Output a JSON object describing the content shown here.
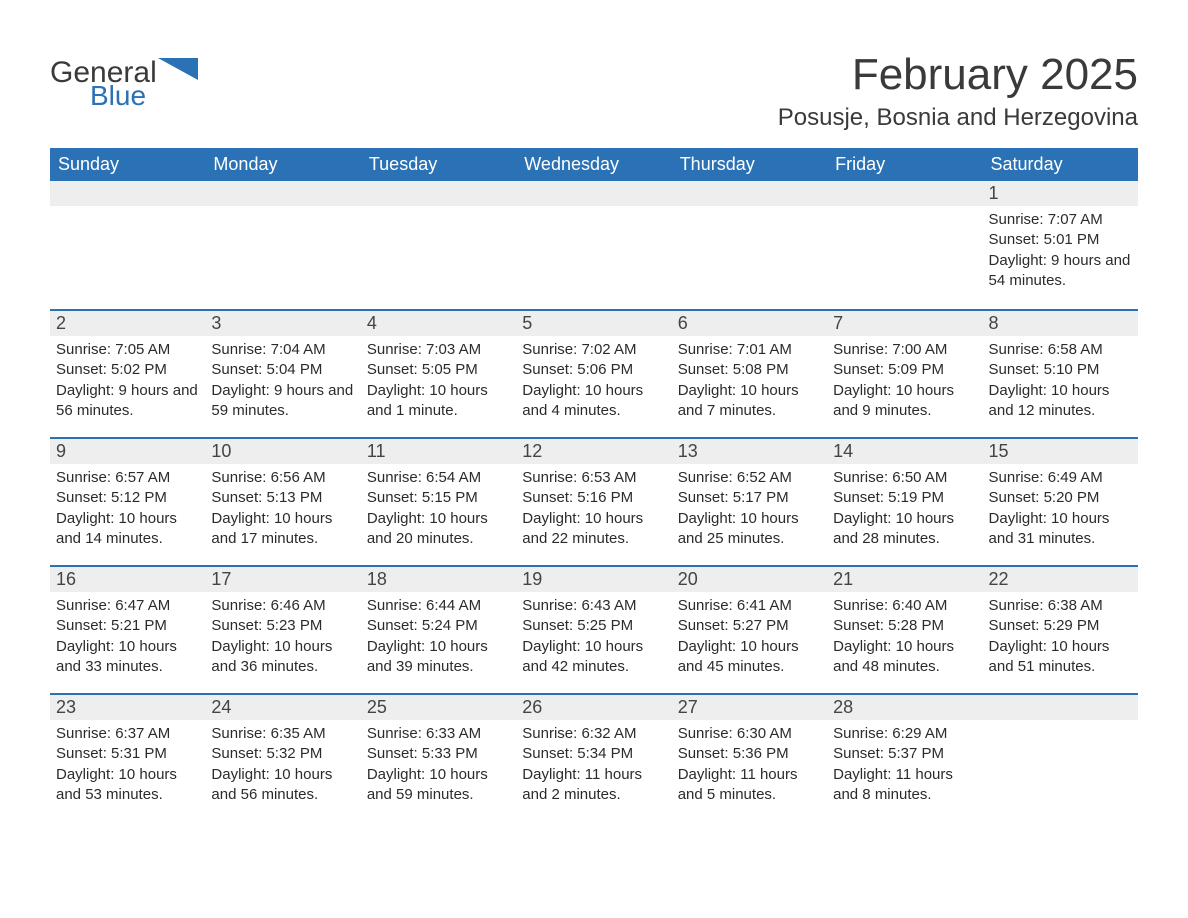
{
  "logo": {
    "word1": "General",
    "word2": "Blue",
    "accent_color": "#2a72b5"
  },
  "title": "February 2025",
  "location": "Posusje, Bosnia and Herzegovina",
  "colors": {
    "header_bg": "#2a72b5",
    "header_text": "#ffffff",
    "row_stripe": "#eeeeee",
    "row_border": "#2a72b5",
    "body_text": "#2b2b2b",
    "background": "#ffffff"
  },
  "weekdays": [
    "Sunday",
    "Monday",
    "Tuesday",
    "Wednesday",
    "Thursday",
    "Friday",
    "Saturday"
  ],
  "weeks": [
    [
      null,
      null,
      null,
      null,
      null,
      null,
      {
        "n": "1",
        "sunrise": "Sunrise: 7:07 AM",
        "sunset": "Sunset: 5:01 PM",
        "daylight": "Daylight: 9 hours and 54 minutes."
      }
    ],
    [
      {
        "n": "2",
        "sunrise": "Sunrise: 7:05 AM",
        "sunset": "Sunset: 5:02 PM",
        "daylight": "Daylight: 9 hours and 56 minutes."
      },
      {
        "n": "3",
        "sunrise": "Sunrise: 7:04 AM",
        "sunset": "Sunset: 5:04 PM",
        "daylight": "Daylight: 9 hours and 59 minutes."
      },
      {
        "n": "4",
        "sunrise": "Sunrise: 7:03 AM",
        "sunset": "Sunset: 5:05 PM",
        "daylight": "Daylight: 10 hours and 1 minute."
      },
      {
        "n": "5",
        "sunrise": "Sunrise: 7:02 AM",
        "sunset": "Sunset: 5:06 PM",
        "daylight": "Daylight: 10 hours and 4 minutes."
      },
      {
        "n": "6",
        "sunrise": "Sunrise: 7:01 AM",
        "sunset": "Sunset: 5:08 PM",
        "daylight": "Daylight: 10 hours and 7 minutes."
      },
      {
        "n": "7",
        "sunrise": "Sunrise: 7:00 AM",
        "sunset": "Sunset: 5:09 PM",
        "daylight": "Daylight: 10 hours and 9 minutes."
      },
      {
        "n": "8",
        "sunrise": "Sunrise: 6:58 AM",
        "sunset": "Sunset: 5:10 PM",
        "daylight": "Daylight: 10 hours and 12 minutes."
      }
    ],
    [
      {
        "n": "9",
        "sunrise": "Sunrise: 6:57 AM",
        "sunset": "Sunset: 5:12 PM",
        "daylight": "Daylight: 10 hours and 14 minutes."
      },
      {
        "n": "10",
        "sunrise": "Sunrise: 6:56 AM",
        "sunset": "Sunset: 5:13 PM",
        "daylight": "Daylight: 10 hours and 17 minutes."
      },
      {
        "n": "11",
        "sunrise": "Sunrise: 6:54 AM",
        "sunset": "Sunset: 5:15 PM",
        "daylight": "Daylight: 10 hours and 20 minutes."
      },
      {
        "n": "12",
        "sunrise": "Sunrise: 6:53 AM",
        "sunset": "Sunset: 5:16 PM",
        "daylight": "Daylight: 10 hours and 22 minutes."
      },
      {
        "n": "13",
        "sunrise": "Sunrise: 6:52 AM",
        "sunset": "Sunset: 5:17 PM",
        "daylight": "Daylight: 10 hours and 25 minutes."
      },
      {
        "n": "14",
        "sunrise": "Sunrise: 6:50 AM",
        "sunset": "Sunset: 5:19 PM",
        "daylight": "Daylight: 10 hours and 28 minutes."
      },
      {
        "n": "15",
        "sunrise": "Sunrise: 6:49 AM",
        "sunset": "Sunset: 5:20 PM",
        "daylight": "Daylight: 10 hours and 31 minutes."
      }
    ],
    [
      {
        "n": "16",
        "sunrise": "Sunrise: 6:47 AM",
        "sunset": "Sunset: 5:21 PM",
        "daylight": "Daylight: 10 hours and 33 minutes."
      },
      {
        "n": "17",
        "sunrise": "Sunrise: 6:46 AM",
        "sunset": "Sunset: 5:23 PM",
        "daylight": "Daylight: 10 hours and 36 minutes."
      },
      {
        "n": "18",
        "sunrise": "Sunrise: 6:44 AM",
        "sunset": "Sunset: 5:24 PM",
        "daylight": "Daylight: 10 hours and 39 minutes."
      },
      {
        "n": "19",
        "sunrise": "Sunrise: 6:43 AM",
        "sunset": "Sunset: 5:25 PM",
        "daylight": "Daylight: 10 hours and 42 minutes."
      },
      {
        "n": "20",
        "sunrise": "Sunrise: 6:41 AM",
        "sunset": "Sunset: 5:27 PM",
        "daylight": "Daylight: 10 hours and 45 minutes."
      },
      {
        "n": "21",
        "sunrise": "Sunrise: 6:40 AM",
        "sunset": "Sunset: 5:28 PM",
        "daylight": "Daylight: 10 hours and 48 minutes."
      },
      {
        "n": "22",
        "sunrise": "Sunrise: 6:38 AM",
        "sunset": "Sunset: 5:29 PM",
        "daylight": "Daylight: 10 hours and 51 minutes."
      }
    ],
    [
      {
        "n": "23",
        "sunrise": "Sunrise: 6:37 AM",
        "sunset": "Sunset: 5:31 PM",
        "daylight": "Daylight: 10 hours and 53 minutes."
      },
      {
        "n": "24",
        "sunrise": "Sunrise: 6:35 AM",
        "sunset": "Sunset: 5:32 PM",
        "daylight": "Daylight: 10 hours and 56 minutes."
      },
      {
        "n": "25",
        "sunrise": "Sunrise: 6:33 AM",
        "sunset": "Sunset: 5:33 PM",
        "daylight": "Daylight: 10 hours and 59 minutes."
      },
      {
        "n": "26",
        "sunrise": "Sunrise: 6:32 AM",
        "sunset": "Sunset: 5:34 PM",
        "daylight": "Daylight: 11 hours and 2 minutes."
      },
      {
        "n": "27",
        "sunrise": "Sunrise: 6:30 AM",
        "sunset": "Sunset: 5:36 PM",
        "daylight": "Daylight: 11 hours and 5 minutes."
      },
      {
        "n": "28",
        "sunrise": "Sunrise: 6:29 AM",
        "sunset": "Sunset: 5:37 PM",
        "daylight": "Daylight: 11 hours and 8 minutes."
      },
      null
    ]
  ]
}
